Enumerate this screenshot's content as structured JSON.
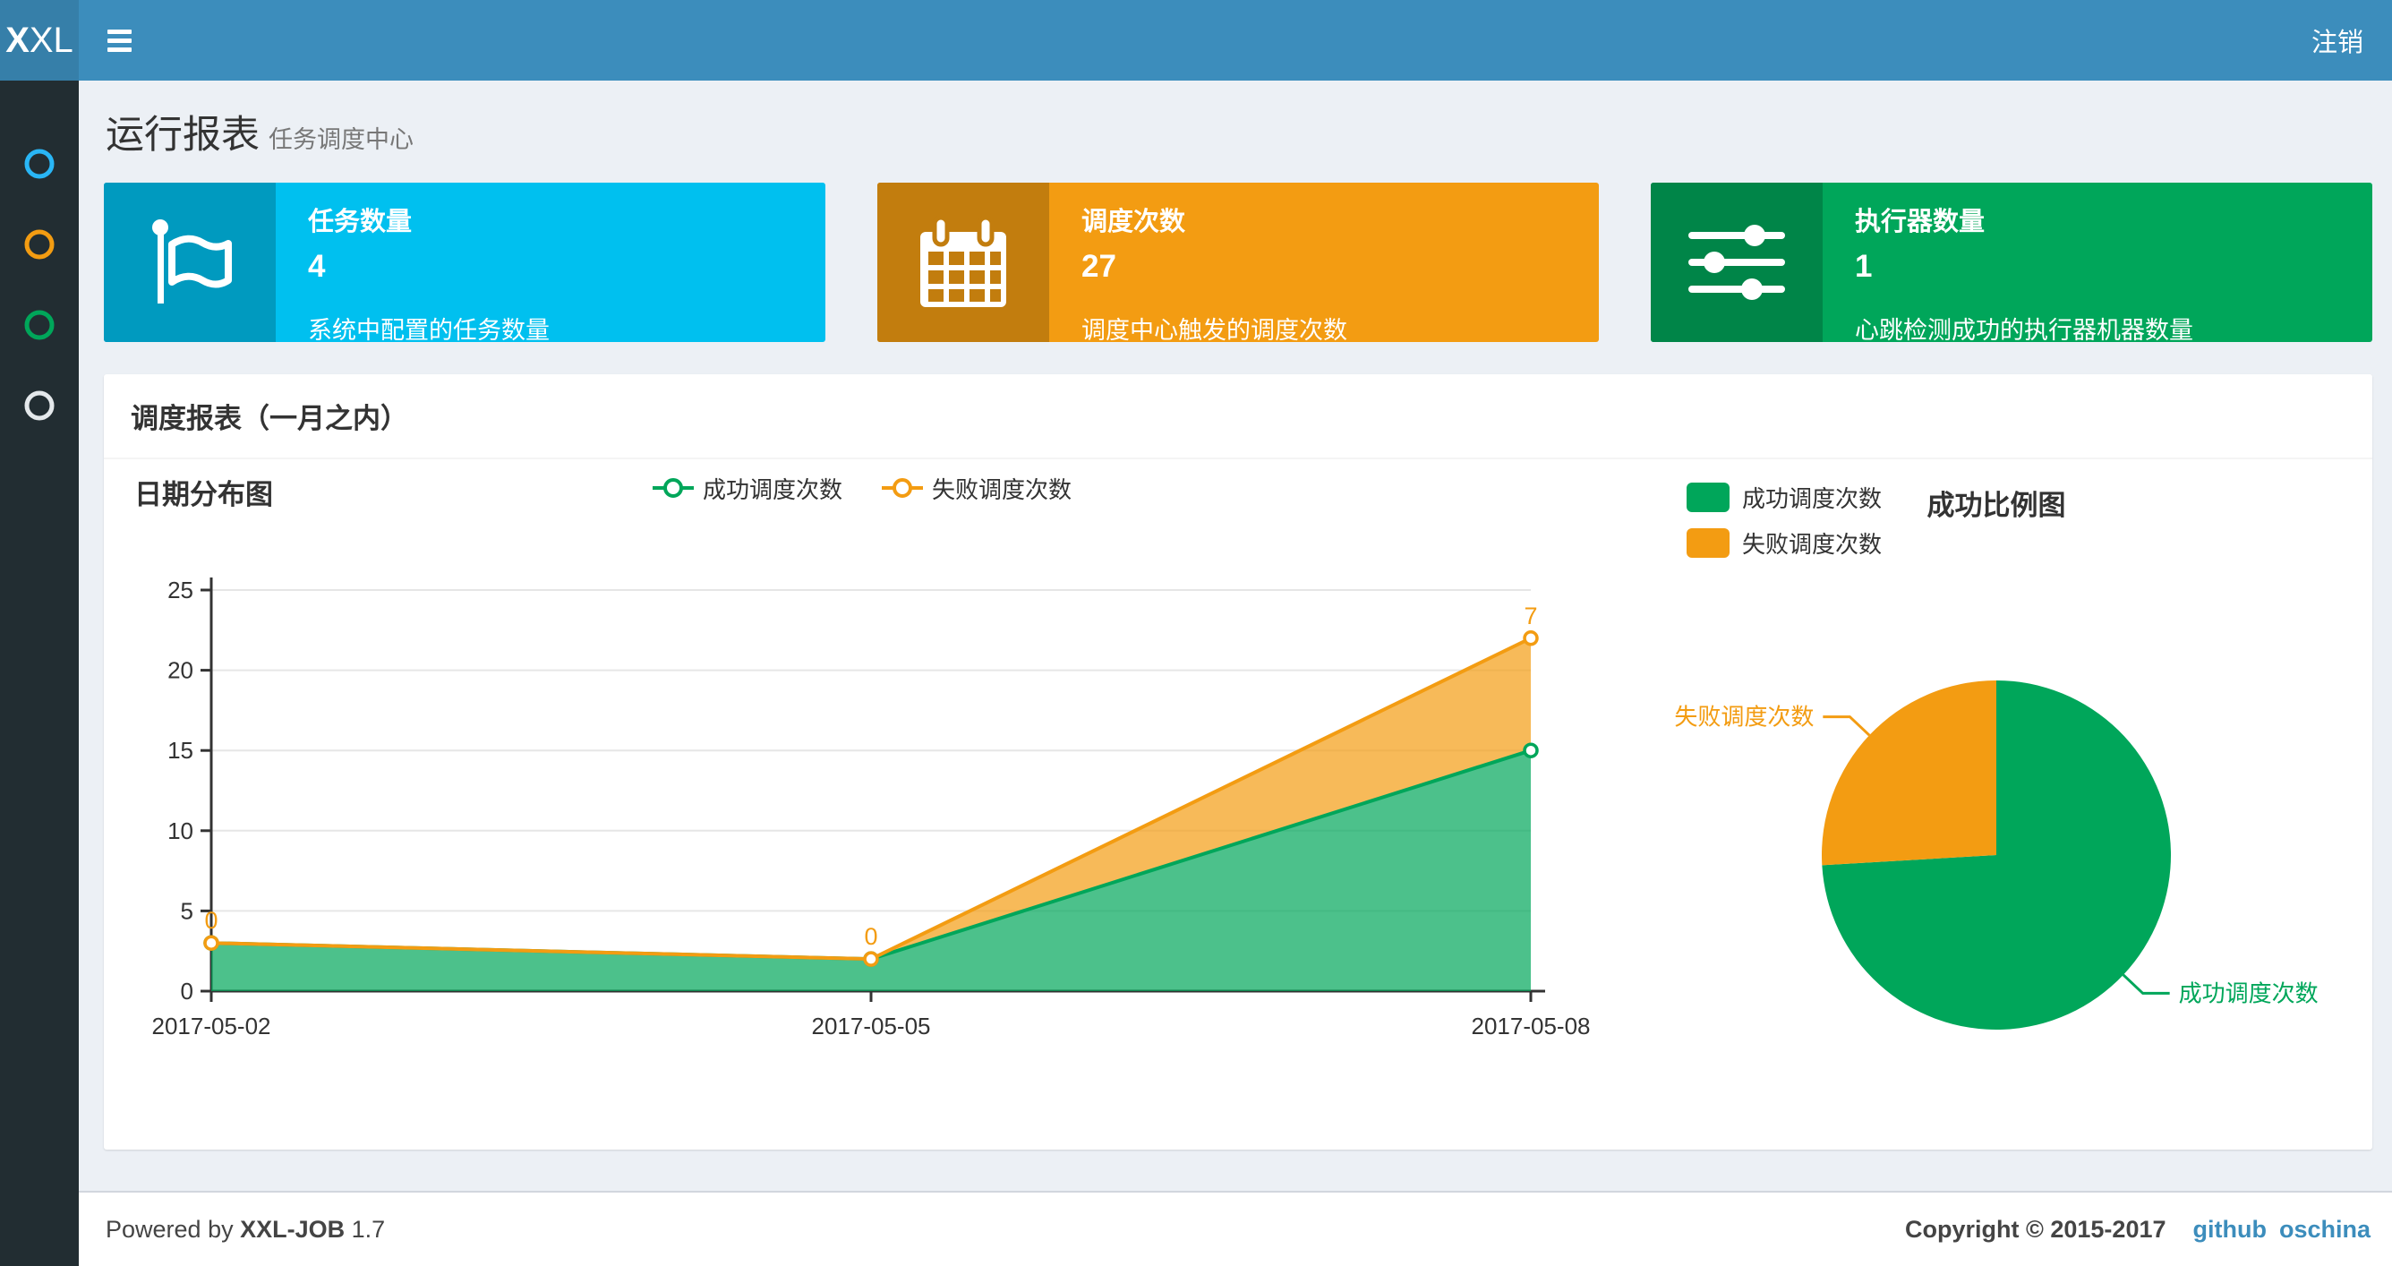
{
  "navbar": {
    "logo_bold": "X",
    "logo_rest": "XL",
    "logout_label": "注销",
    "bar_color": "#3c8dbc",
    "logo_bg_color": "#367fa9"
  },
  "sidebar": {
    "bg_color": "#222d32",
    "items": [
      {
        "name": "menu-circle-1",
        "color": "#29b6f6"
      },
      {
        "name": "menu-circle-2",
        "color": "#f39c12"
      },
      {
        "name": "menu-circle-3",
        "color": "#00a65a"
      },
      {
        "name": "menu-circle-4",
        "color": "#e4e8eb"
      }
    ]
  },
  "page_header": {
    "title": "运行报表",
    "subtitle": "任务调度中心"
  },
  "stat_boxes": [
    {
      "label": "任务数量",
      "value": "4",
      "desc": "系统中配置的任务数量",
      "color": "#00c0ef",
      "icon_bg": "#009abf",
      "icon": "flag-icon"
    },
    {
      "label": "调度次数",
      "value": "27",
      "desc": "调度中心触发的调度次数",
      "color": "#f39c12",
      "icon_bg": "#c27d0e",
      "icon": "calendar-icon"
    },
    {
      "label": "执行器数量",
      "value": "1",
      "desc": "心跳检测成功的执行器机器数量",
      "color": "#00a65a",
      "icon_bg": "#008548",
      "icon": "sliders-icon"
    }
  ],
  "panel": {
    "title": "调度报表（一月之内）"
  },
  "chart_data": [
    {
      "type": "area",
      "title": "日期分布图",
      "stacked": true,
      "grid": true,
      "legend_position": "top-center",
      "categories": [
        "2017-05-02",
        "2017-05-05",
        "2017-05-08"
      ],
      "series": [
        {
          "name": "成功调度次数",
          "color": "#00a65a",
          "values": [
            3,
            2,
            15
          ]
        },
        {
          "name": "失败调度次数",
          "color": "#f39c12",
          "values": [
            0,
            0,
            7
          ],
          "point_labels": [
            "0",
            "0",
            "7"
          ]
        }
      ],
      "ylim": [
        0,
        25
      ],
      "ytick_step": 5
    },
    {
      "type": "pie",
      "title": "成功比例图",
      "legend_position": "top-left",
      "slices": [
        {
          "name": "成功调度次数",
          "value": 20,
          "color": "#00a65a"
        },
        {
          "name": "失败调度次数",
          "value": 7,
          "color": "#f39c12"
        }
      ]
    }
  ],
  "footer": {
    "powered_prefix": "Powered by",
    "product": "XXL-JOB",
    "version": "1.7",
    "copyright": "Copyright © 2015-2017",
    "links": [
      {
        "label": "github"
      },
      {
        "label": "oschina"
      }
    ]
  }
}
